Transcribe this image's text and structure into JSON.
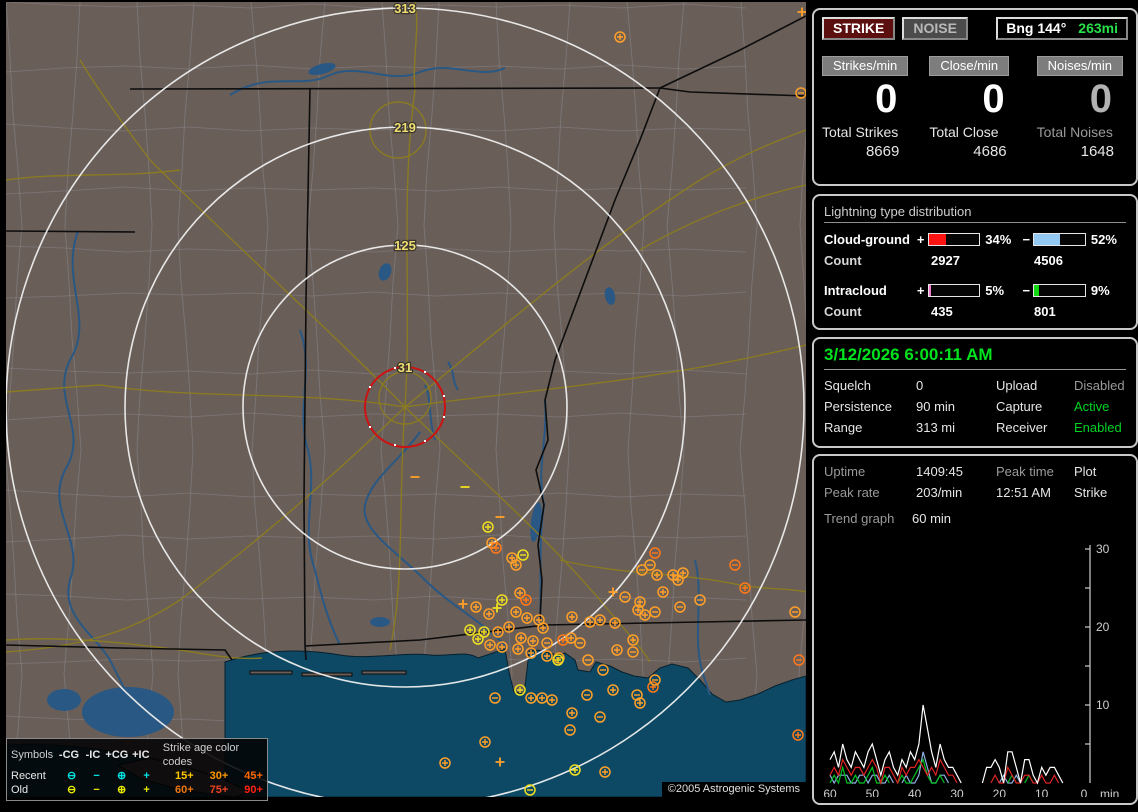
{
  "header": {
    "strike_label": "STRIKE",
    "noise_label": "NOISE",
    "bearing_label": "Bng 144°",
    "bearing_distance": "263mi"
  },
  "counters": {
    "columns": [
      {
        "label": "Strikes/min",
        "value": "0",
        "total_label": "Total Strikes",
        "total": "8669"
      },
      {
        "label": "Close/min",
        "value": "0",
        "total_label": "Total Close",
        "total": "4686"
      },
      {
        "label": "Noises/min",
        "value": "0",
        "total_label": "Total Noises",
        "total": "1648"
      }
    ]
  },
  "distribution": {
    "title": "Lightning type distribution",
    "signs": {
      "plus": "+",
      "minus": "−"
    },
    "rows": [
      {
        "label": "Cloud-ground",
        "count_label": "Count",
        "pos_pct": 34,
        "pos_pct_text": "34%",
        "pos_color": "#ff1212",
        "pos_count": "2927",
        "neg_pct": 52,
        "neg_pct_text": "52%",
        "neg_color": "#92c8f2",
        "neg_count": "4506"
      },
      {
        "label": "Intracloud",
        "count_label": "Count",
        "pos_pct": 5,
        "pos_pct_text": "5%",
        "pos_color": "#f078c8",
        "pos_count": "435",
        "neg_pct": 9,
        "neg_pct_text": "9%",
        "neg_color": "#12d812",
        "neg_count": "801"
      }
    ]
  },
  "status": {
    "datetime": "3/12/2026 6:00:11 AM",
    "rows": [
      [
        "Squelch",
        "0",
        "Upload",
        "Disabled"
      ],
      [
        "Persistence",
        "90 min",
        "Capture",
        "Active"
      ],
      [
        "Range",
        "313 mi",
        "Receiver",
        "Enabled"
      ]
    ]
  },
  "stats": {
    "rows": [
      [
        "Uptime",
        "1409:45",
        "Peak time",
        "Plot"
      ],
      [
        "Peak rate",
        "203/min",
        "12:51 AM",
        "Strike"
      ]
    ],
    "trend_label": "Trend graph",
    "trend_value": "60 min"
  },
  "legend": {
    "col_headers": [
      "Symbols",
      "-CG",
      "-IC",
      "+CG",
      "+IC"
    ],
    "age_header": "Strike age color codes",
    "symbols": {
      "cgm": "⊖",
      "icm": "−",
      "cgp": "⊕",
      "icp": "+"
    },
    "rows": [
      {
        "label": "Recent",
        "color": "#00e2e2",
        "ages": [
          {
            "t": "15+",
            "c": "#ffc800"
          },
          {
            "t": "30+",
            "c": "#ff9900"
          },
          {
            "t": "45+",
            "c": "#ff6600"
          }
        ]
      },
      {
        "label": "Old",
        "color": "#e8e800",
        "ages": [
          {
            "t": "60+",
            "c": "#ee7711"
          },
          {
            "t": "75+",
            "c": "#ee4422"
          },
          {
            "t": "90+",
            "c": "#ff2211"
          }
        ]
      }
    ]
  },
  "map": {
    "ring_labels": [
      "313",
      "219",
      "125",
      "31"
    ],
    "copyright": "©2005 Astrogenic Systems",
    "strikes": [
      [
        620,
        37,
        "cg+",
        "#ffa028"
      ],
      [
        801,
        93,
        "cg-",
        "#ffa028"
      ],
      [
        802,
        12,
        "ic+",
        "#ffa028"
      ],
      [
        415,
        477,
        "ic-",
        "#ffa028"
      ],
      [
        465,
        487,
        "ic-",
        "#f0e020"
      ],
      [
        500,
        517,
        "ic-",
        "#ffa028"
      ],
      [
        488,
        527,
        "cg+",
        "#f0e020"
      ],
      [
        492,
        543,
        "cg+",
        "#ffa028"
      ],
      [
        496,
        548,
        "cg+",
        "#ff7818"
      ],
      [
        512,
        558,
        "cg+",
        "#ffa028"
      ],
      [
        516,
        565,
        "cg+",
        "#ffa028"
      ],
      [
        523,
        555,
        "cg-",
        "#f0e020"
      ],
      [
        520,
        593,
        "cg+",
        "#ffa028"
      ],
      [
        526,
        600,
        "cg+",
        "#ff7818"
      ],
      [
        502,
        600,
        "cg+",
        "#f0e020"
      ],
      [
        476,
        607,
        "cg+",
        "#ffa028"
      ],
      [
        463,
        604,
        "ic+",
        "#ffa028"
      ],
      [
        489,
        614,
        "cg+",
        "#ffa028"
      ],
      [
        497,
        608,
        "ic+",
        "#f0e020"
      ],
      [
        516,
        612,
        "cg+",
        "#ffa028"
      ],
      [
        527,
        618,
        "cg+",
        "#ffa028"
      ],
      [
        539,
        620,
        "cg+",
        "#ffa028"
      ],
      [
        509,
        627,
        "cg+",
        "#ffa028"
      ],
      [
        543,
        628,
        "cg+",
        "#ffa028"
      ],
      [
        470,
        630,
        "cg+",
        "#f0e020"
      ],
      [
        484,
        632,
        "cg+",
        "#f0e020"
      ],
      [
        498,
        632,
        "cg+",
        "#ffa028"
      ],
      [
        478,
        639,
        "cg+",
        "#f0e020"
      ],
      [
        490,
        645,
        "cg+",
        "#ffa028"
      ],
      [
        502,
        647,
        "cg+",
        "#ffa028"
      ],
      [
        521,
        638,
        "cg+",
        "#ffa028"
      ],
      [
        533,
        641,
        "cg+",
        "#ffa028"
      ],
      [
        547,
        643,
        "cg-",
        "#ffa028"
      ],
      [
        518,
        649,
        "cg+",
        "#ffa028"
      ],
      [
        531,
        653,
        "cg+",
        "#ffa028"
      ],
      [
        547,
        656,
        "cg+",
        "#ffa028"
      ],
      [
        559,
        658,
        "cg-",
        "#ffa028"
      ],
      [
        563,
        640,
        "cg+",
        "#ff7818"
      ],
      [
        571,
        638,
        "cg+",
        "#ffa028"
      ],
      [
        655,
        553,
        "cg-",
        "#ff7818"
      ],
      [
        642,
        570,
        "cg-",
        "#ffa028"
      ],
      [
        650,
        565,
        "cg-",
        "#ffa028"
      ],
      [
        657,
        575,
        "cg+",
        "#ffa028"
      ],
      [
        673,
        575,
        "cg+",
        "#ffa028"
      ],
      [
        683,
        573,
        "cg+",
        "#ffa028"
      ],
      [
        678,
        580,
        "cg+",
        "#ffa028"
      ],
      [
        663,
        592,
        "cg+",
        "#ffa028"
      ],
      [
        625,
        597,
        "cg-",
        "#ffa028"
      ],
      [
        640,
        602,
        "cg+",
        "#ffa028"
      ],
      [
        638,
        610,
        "cg+",
        "#ffa028"
      ],
      [
        655,
        612,
        "cg-",
        "#ffa028"
      ],
      [
        645,
        615,
        "cg+",
        "#ffa028"
      ],
      [
        680,
        607,
        "cg-",
        "#ffa028"
      ],
      [
        613,
        592,
        "ic+",
        "#ffa028"
      ],
      [
        572,
        617,
        "cg+",
        "#ffa028"
      ],
      [
        590,
        622,
        "cg+",
        "#ffa028"
      ],
      [
        600,
        620,
        "cg+",
        "#ffa028"
      ],
      [
        615,
        623,
        "cg+",
        "#ffa028"
      ],
      [
        633,
        640,
        "cg+",
        "#ffa028"
      ],
      [
        580,
        643,
        "cg-",
        "#ffa028"
      ],
      [
        588,
        660,
        "cg-",
        "#ffa028"
      ],
      [
        617,
        650,
        "cg+",
        "#ffa028"
      ],
      [
        633,
        652,
        "cg-",
        "#ffa028"
      ],
      [
        558,
        660,
        "cg+",
        "#f0e020"
      ],
      [
        735,
        565,
        "cg-",
        "#ff7818"
      ],
      [
        745,
        588,
        "cg+",
        "#ff7818"
      ],
      [
        700,
        600,
        "cg-",
        "#ffa028"
      ],
      [
        795,
        612,
        "cg-",
        "#ffa028"
      ],
      [
        799,
        660,
        "cg-",
        "#ff7818"
      ],
      [
        798,
        735,
        "cg+",
        "#ff7818"
      ],
      [
        495,
        698,
        "cg-",
        "#ffa028"
      ],
      [
        520,
        690,
        "cg+",
        "#f0e020"
      ],
      [
        531,
        698,
        "cg+",
        "#ffa028"
      ],
      [
        542,
        698,
        "cg+",
        "#ffa028"
      ],
      [
        552,
        700,
        "cg+",
        "#ffa028"
      ],
      [
        570,
        730,
        "cg-",
        "#ffa028"
      ],
      [
        600,
        717,
        "cg-",
        "#ffa028"
      ],
      [
        587,
        695,
        "cg-",
        "#ffa028"
      ],
      [
        603,
        670,
        "cg-",
        "#ffa028"
      ],
      [
        613,
        690,
        "cg+",
        "#ffa028"
      ],
      [
        637,
        695,
        "cg-",
        "#ffa028"
      ],
      [
        640,
        703,
        "cg+",
        "#ffa028"
      ],
      [
        653,
        687,
        "cg+",
        "#ff7818"
      ],
      [
        572,
        713,
        "cg+",
        "#ffa028"
      ],
      [
        485,
        742,
        "cg+",
        "#ffa028"
      ],
      [
        500,
        762,
        "ic+",
        "#ffa028"
      ],
      [
        530,
        790,
        "cg-",
        "#f0e020"
      ],
      [
        575,
        770,
        "cg+",
        "#f0e020"
      ],
      [
        605,
        772,
        "cg+",
        "#ffa028"
      ],
      [
        655,
        680,
        "cg-",
        "#ffa028"
      ],
      [
        445,
        763,
        "cg+",
        "#ffa028"
      ]
    ]
  },
  "chart_data": {
    "type": "line",
    "title": "Trend graph 60 min",
    "x_ticks": [
      60,
      50,
      40,
      30,
      20,
      10,
      0
    ],
    "x_unit": "min",
    "y_ticks": [
      10,
      20,
      30
    ],
    "ylim": [
      0,
      30
    ],
    "x_is_minutes_ago": [
      60,
      0
    ],
    "legend_position": "none",
    "grid": false,
    "series": [
      {
        "name": "intracloud-neg",
        "color": "#90b2e2",
        "values": [
          1,
          0,
          1,
          1,
          1,
          0,
          0,
          1,
          1,
          0,
          1,
          1,
          0,
          0,
          1,
          0,
          0,
          0,
          1,
          0,
          0,
          1,
          4,
          2,
          0,
          0,
          1,
          1,
          0,
          0,
          0,
          0,
          0,
          0,
          0,
          0,
          0,
          0,
          0,
          0,
          0,
          1,
          0,
          0,
          1,
          0,
          0,
          0,
          0,
          0,
          0,
          0,
          0,
          0,
          0,
          0,
          0,
          0,
          0,
          0,
          0
        ]
      },
      {
        "name": "intracloud-pos",
        "color": "#00c422",
        "values": [
          0,
          1,
          0,
          2,
          0,
          0,
          1,
          0,
          0,
          1,
          2,
          0,
          0,
          1,
          0,
          0,
          0,
          1,
          0,
          0,
          1,
          2,
          3,
          1,
          0,
          0,
          1,
          0,
          0,
          0,
          0,
          0,
          0,
          0,
          0,
          0,
          0,
          0,
          0,
          0,
          0,
          0,
          0,
          1,
          0,
          0,
          0,
          1,
          0,
          0,
          0,
          0,
          0,
          0,
          0,
          0,
          0,
          0,
          0,
          0,
          0
        ]
      },
      {
        "name": "cloud-ground",
        "color": "#e02424",
        "values": [
          1,
          2,
          1,
          3,
          2,
          1,
          2,
          2,
          1,
          2,
          3,
          2,
          0,
          2,
          2,
          1,
          0,
          2,
          1,
          2,
          2,
          3,
          2,
          1,
          2,
          1,
          3,
          2,
          1,
          1,
          0,
          0,
          0,
          0,
          0,
          0,
          0,
          0,
          0,
          1,
          0,
          0,
          2,
          1,
          0,
          0,
          1,
          1,
          0,
          0,
          1,
          0,
          0,
          1,
          0,
          0,
          0,
          0,
          0,
          0,
          0
        ]
      },
      {
        "name": "total-strikes",
        "color": "#ffffff",
        "values": [
          3,
          4,
          2,
          5,
          3,
          2,
          4,
          3,
          2,
          4,
          5,
          3,
          1,
          3,
          4,
          2,
          1,
          3,
          2,
          4,
          3,
          5,
          10,
          7,
          4,
          2,
          5,
          3,
          2,
          2,
          1,
          0,
          0,
          0,
          0,
          0,
          0,
          2,
          2,
          3,
          2,
          0,
          4,
          4,
          2,
          0,
          3,
          3,
          1,
          0,
          2,
          1,
          2,
          2,
          1,
          0,
          0,
          0,
          0,
          0,
          0
        ]
      }
    ]
  }
}
